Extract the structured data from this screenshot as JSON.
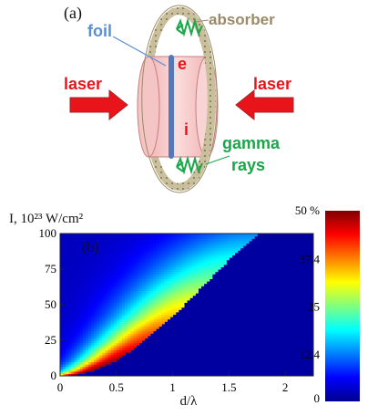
{
  "panel_a": {
    "label": "(a)",
    "foil_label": "foil",
    "absorber_label": "absorber",
    "laser_left_label": "laser",
    "laser_right_label": "laser",
    "electron_label": "e",
    "ion_label": "i",
    "gamma_label_line1": "gamma",
    "gamma_label_line2": "rays",
    "colors": {
      "foil_label": "#5b8fd4",
      "absorber_label": "#9a8a6a",
      "laser": "#e8141a",
      "gamma": "#1aa64a",
      "foil_disk": "#f7c9c9",
      "foil_layer": "#5577bb",
      "ring": "#b8ad8a"
    }
  },
  "panel_b": {
    "label": "(b)",
    "y_title": "I, 10²³ W/cm²",
    "x_title": "d/λ",
    "colorbar_title": "50 %"
  },
  "chart_data": {
    "type": "heatmap",
    "title": "",
    "xlabel": "d/λ",
    "ylabel": "I, 10²³ W/cm²",
    "xlim": [
      0,
      2.25
    ],
    "ylim": [
      0,
      100
    ],
    "x_ticks": [
      0,
      0.5,
      1,
      1.5,
      2
    ],
    "x_tick_labels": [
      "0",
      "0.5",
      "1",
      "1.5",
      "2"
    ],
    "y_ticks": [
      0,
      25,
      50,
      75,
      100
    ],
    "y_tick_labels": [
      "0",
      "25",
      "50",
      "75",
      "100"
    ],
    "colorbar": {
      "min": 0,
      "max": 50,
      "unit": "%",
      "ticks": [
        0,
        12.4,
        25,
        37.4,
        50
      ],
      "tick_labels": [
        "0",
        "12.4",
        "25",
        "37.4",
        "50 %"
      ],
      "colormap": "jet"
    },
    "boundary": {
      "description": "Region of nonzero efficiency lies above-left of a boundary curve I(d); right of it the value is 0",
      "points": [
        [
          0.12,
          0
        ],
        [
          0.3,
          4
        ],
        [
          0.5,
          11
        ],
        [
          0.75,
          25
        ],
        [
          1.0,
          42
        ],
        [
          1.25,
          62
        ],
        [
          1.5,
          82
        ],
        [
          1.75,
          100
        ]
      ]
    },
    "ridge": {
      "description": "Maximum (~50%) lies just to the left of the boundary, decreasing toward the upper-left",
      "values_along_boundary": [
        [
          0.15,
          50
        ],
        [
          0.5,
          48
        ],
        [
          0.8,
          40
        ],
        [
          1.1,
          30
        ],
        [
          1.4,
          20
        ],
        [
          1.7,
          12
        ]
      ]
    }
  }
}
